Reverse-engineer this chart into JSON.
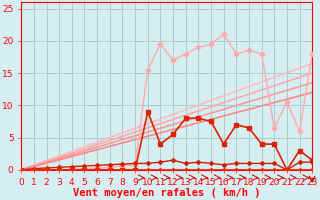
{
  "xlabel": "Vent moyen/en rafales ( km/h )",
  "xlim": [
    0,
    23
  ],
  "ylim": [
    0,
    26
  ],
  "xticks": [
    0,
    1,
    2,
    3,
    4,
    5,
    6,
    7,
    8,
    9,
    10,
    11,
    12,
    13,
    14,
    15,
    16,
    17,
    18,
    19,
    20,
    21,
    22,
    23
  ],
  "yticks": [
    0,
    5,
    10,
    15,
    20,
    25
  ],
  "background_color": "#d6eef2",
  "grid_color": "#aacccc",
  "lines": [
    {
      "x": [
        0,
        1,
        2,
        3,
        4,
        5,
        6,
        7,
        8,
        9,
        10,
        11,
        12,
        13,
        14,
        15,
        16,
        17,
        18,
        19,
        20,
        21,
        22,
        23
      ],
      "y": [
        0,
        0,
        0,
        0,
        0,
        0.2,
        0.3,
        0.4,
        0.6,
        0.8,
        15.5,
        19.5,
        17,
        18,
        19,
        19.5,
        21,
        18,
        18.5,
        18,
        6.5,
        10.5,
        6,
        18
      ],
      "color": "#ffaaaa",
      "linewidth": 1.0,
      "marker": "D",
      "markersize": 2.5,
      "zorder": 4
    },
    {
      "x": [
        0,
        23
      ],
      "y": [
        0,
        16.5
      ],
      "color": "#ffbbbb",
      "linewidth": 1.2,
      "marker": null,
      "markersize": 0,
      "zorder": 2
    },
    {
      "x": [
        0,
        23
      ],
      "y": [
        0,
        15
      ],
      "color": "#ffaaaa",
      "linewidth": 1.2,
      "marker": null,
      "markersize": 0,
      "zorder": 2
    },
    {
      "x": [
        0,
        23
      ],
      "y": [
        0,
        13.5
      ],
      "color": "#ff9999",
      "linewidth": 1.2,
      "marker": null,
      "markersize": 0,
      "zorder": 2
    },
    {
      "x": [
        0,
        23
      ],
      "y": [
        0,
        12
      ],
      "color": "#ff8888",
      "linewidth": 1.2,
      "marker": null,
      "markersize": 0,
      "zorder": 2
    },
    {
      "x": [
        0,
        1,
        2,
        3,
        4,
        5,
        6,
        7,
        8,
        9,
        10,
        11,
        12,
        13,
        14,
        15,
        16,
        17,
        18,
        19,
        20,
        21,
        22,
        23
      ],
      "y": [
        0,
        0,
        0,
        0,
        0,
        0,
        0,
        0,
        0,
        0,
        9.0,
        4.0,
        5.5,
        8.0,
        8.0,
        7.5,
        4.0,
        7.0,
        6.5,
        4.0,
        4.0,
        0,
        3.0,
        1.5
      ],
      "color": "#dd2200",
      "linewidth": 1.2,
      "marker": "s",
      "markersize": 2.5,
      "zorder": 5
    },
    {
      "x": [
        0,
        1,
        2,
        3,
        4,
        5,
        6,
        7,
        8,
        9,
        10,
        11,
        12,
        13,
        14,
        15,
        16,
        17,
        18,
        19,
        20,
        21,
        22,
        23
      ],
      "y": [
        0,
        0.2,
        0.3,
        0.4,
        0.5,
        0.6,
        0.7,
        0.8,
        0.9,
        1.0,
        1.0,
        1.2,
        1.5,
        1.0,
        1.2,
        1.0,
        0.8,
        1.0,
        1.0,
        1.0,
        1.0,
        0,
        1.2,
        1.2
      ],
      "color": "#cc2200",
      "linewidth": 1.0,
      "marker": "D",
      "markersize": 2.0,
      "zorder": 5
    },
    {
      "x": [
        0,
        1,
        2,
        3,
        4,
        5,
        6,
        7,
        8,
        9,
        10,
        11,
        12,
        13,
        14,
        15,
        16,
        17,
        18,
        19,
        20,
        21,
        22,
        23
      ],
      "y": [
        0,
        0,
        0,
        0,
        0,
        0,
        0,
        0,
        0,
        0,
        0,
        0,
        0,
        0,
        0,
        0,
        0,
        0,
        0,
        0,
        0,
        0,
        0,
        0
      ],
      "color": "#ff2200",
      "linewidth": 1.2,
      "marker": "D",
      "markersize": 2.0,
      "zorder": 5
    }
  ],
  "xlabel_color": "#ff0000",
  "tick_color": "#ff0000",
  "xlabel_fontsize": 7.5,
  "tick_fontsize": 6.5
}
